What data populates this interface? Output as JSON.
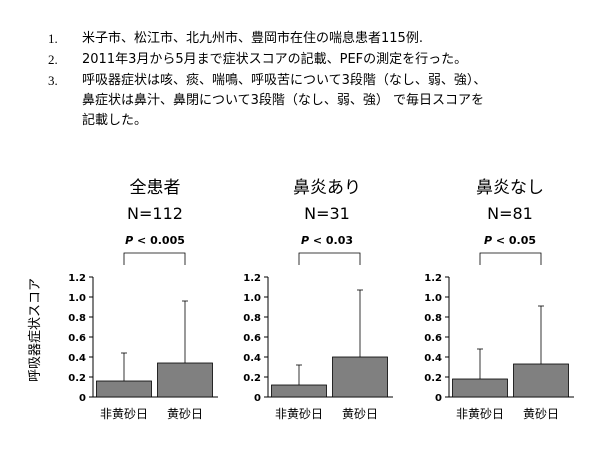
{
  "notes": [
    {
      "num": "1.",
      "lines": [
        "米子市、松江市、北九州市、豊岡市在住の喘息患者115例."
      ]
    },
    {
      "num": "2.",
      "lines": [
        "2011年3月から5月まで症状スコアの記載、PEFの測定を行った。"
      ]
    },
    {
      "num": "3.",
      "lines": [
        "呼吸器症状は咳、痰、喘鳴、呼吸苦について3段階（なし、弱、強）、",
        "鼻症状は鼻汁、鼻閉について3段階（なし、弱、強） で毎日スコアを",
        "記載した。"
      ]
    }
  ],
  "shared_ylabel": "呼吸器症状スコア",
  "chart_data": [
    {
      "type": "bar",
      "title": "全患者",
      "subtitle": "N=112",
      "annotation": {
        "italic": "P",
        "text": "< 0.005"
      },
      "categories": [
        "非黄砂日",
        "黄砂日"
      ],
      "values": [
        0.16,
        0.34
      ],
      "error_upper": [
        0.44,
        0.96
      ],
      "ylim": [
        0,
        1.2
      ],
      "yticks": [
        "0",
        "0.2",
        "0.4",
        "0.6",
        "0.8",
        "1.0",
        "1.2"
      ],
      "bar_color": "#808080"
    },
    {
      "type": "bar",
      "title": "鼻炎あり",
      "subtitle": "N=31",
      "annotation": {
        "italic": "P",
        "text": "< 0.03"
      },
      "categories": [
        "非黄砂日",
        "黄砂日"
      ],
      "values": [
        0.12,
        0.4
      ],
      "error_upper": [
        0.32,
        1.07
      ],
      "ylim": [
        0,
        1.2
      ],
      "yticks": [
        "0",
        "0.2",
        "0.4",
        "0.6",
        "0.8",
        "1.0",
        "1.2"
      ],
      "bar_color": "#808080"
    },
    {
      "type": "bar",
      "title": "鼻炎なし",
      "subtitle": "N=81",
      "annotation": {
        "italic": "P",
        "text": "< 0.05"
      },
      "categories": [
        "非黄砂日",
        "黄砂日"
      ],
      "values": [
        0.18,
        0.33
      ],
      "error_upper": [
        0.48,
        0.91
      ],
      "ylim": [
        0,
        1.2
      ],
      "yticks": [
        "0",
        "0.2",
        "0.4",
        "0.6",
        "0.8",
        "1.0",
        "1.2"
      ],
      "bar_color": "#808080"
    }
  ]
}
